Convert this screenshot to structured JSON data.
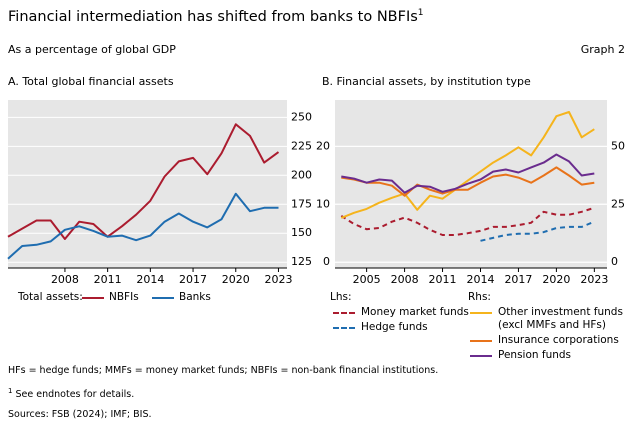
{
  "header": {
    "title": "Financial intermediation has shifted from banks to NBFIs",
    "title_note": "1",
    "subtitle": "As a percentage of global GDP",
    "graph_label": "Graph 2"
  },
  "chart_data": [
    {
      "type": "line",
      "title": "A. Total global financial assets",
      "legend_title": "Total assets:",
      "x": [
        2004,
        2005,
        2006,
        2007,
        2008,
        2009,
        2010,
        2011,
        2012,
        2013,
        2014,
        2015,
        2016,
        2017,
        2018,
        2019,
        2020,
        2021,
        2022,
        2023
      ],
      "xlim": [
        2004,
        2023.6
      ],
      "xticks": [
        2008,
        2011,
        2014,
        2017,
        2020,
        2023
      ],
      "ylim": [
        120,
        265
      ],
      "yticks": [
        125,
        150,
        175,
        200,
        225,
        250
      ],
      "y_axis_side": "right",
      "grid": true,
      "series": [
        {
          "name": "NBFIs",
          "color": "#ab1c2f",
          "values": [
            147,
            154,
            161,
            161,
            145,
            160,
            158,
            147,
            156,
            166,
            178,
            199,
            212,
            215,
            201,
            219,
            244,
            234,
            211,
            220
          ]
        },
        {
          "name": "Banks",
          "color": "#1f6db0",
          "values": [
            128,
            139,
            140,
            143,
            153,
            156,
            152,
            147,
            148,
            144,
            148,
            160,
            167,
            160,
            155,
            162,
            184,
            169,
            172,
            172
          ]
        }
      ]
    },
    {
      "type": "line",
      "title": "B. Financial assets, by institution type",
      "legend_titles": {
        "y": "Lhs:",
        "y2": "Rhs:"
      },
      "x": [
        2003,
        2004,
        2005,
        2006,
        2007,
        2008,
        2009,
        2010,
        2011,
        2012,
        2013,
        2014,
        2015,
        2016,
        2017,
        2018,
        2019,
        2020,
        2021,
        2022,
        2023
      ],
      "xlim": [
        2002.5,
        2024
      ],
      "xticks": [
        2005,
        2008,
        2011,
        2014,
        2017,
        2020,
        2023
      ],
      "ylim": [
        -1,
        28
      ],
      "yticks": [
        0,
        10,
        20
      ],
      "y2lim": [
        -2.5,
        70
      ],
      "y2ticks": [
        0,
        25,
        50
      ],
      "grid": true,
      "series": [
        {
          "name": "Money market funds",
          "color": "#ab1c2f",
          "dashed": true,
          "axis": "y",
          "values": [
            8.0,
            6.6,
            5.7,
            5.9,
            7.0,
            7.7,
            6.8,
            5.6,
            4.7,
            4.7,
            5.0,
            5.4,
            6.1,
            6.1,
            6.4,
            6.8,
            8.7,
            8.2,
            8.2,
            8.7,
            9.4
          ]
        },
        {
          "name": "Hedge funds",
          "color": "#1f6db0",
          "dashed": true,
          "axis": "y",
          "values": [
            null,
            null,
            null,
            null,
            null,
            null,
            null,
            null,
            null,
            null,
            null,
            3.7,
            4.2,
            4.7,
            4.9,
            4.9,
            5.2,
            5.9,
            6.1,
            6.1,
            7.0
          ]
        },
        {
          "name": "Other investment funds (excl MMFs and HFs)",
          "color": "#f5b41c",
          "axis": "y2",
          "values": [
            19.1,
            21.3,
            23.0,
            25.7,
            27.8,
            29.6,
            22.6,
            28.7,
            27.4,
            31.3,
            35.2,
            39.1,
            43.0,
            46.1,
            49.6,
            46.1,
            53.9,
            63.0,
            64.8,
            53.9,
            57.4
          ]
        },
        {
          "name": "Insurance corporations",
          "color": "#e8731a",
          "axis": "y2",
          "values": [
            36.5,
            35.7,
            34.3,
            34.3,
            33.0,
            28.7,
            33.5,
            31.3,
            29.6,
            31.3,
            31.3,
            34.3,
            37.0,
            37.8,
            36.5,
            34.3,
            37.4,
            40.9,
            37.4,
            33.5,
            34.3
          ]
        },
        {
          "name": "Pension funds",
          "color": "#6a2c8e",
          "axis": "y2",
          "values": [
            37.0,
            36.1,
            34.3,
            35.7,
            35.2,
            30.0,
            33.0,
            32.6,
            30.4,
            31.7,
            33.9,
            35.7,
            39.1,
            40.0,
            38.7,
            40.9,
            43.0,
            46.5,
            43.5,
            37.4,
            38.3
          ]
        }
      ]
    }
  ],
  "footer": {
    "abbreviations": "HFs = hedge funds; MMFs = money market funds; NBFIs = non-bank financial institutions.",
    "note_marker": "1",
    "note": "See endnotes for details.",
    "sources": "Sources: FSB (2024); IMF; BIS."
  }
}
